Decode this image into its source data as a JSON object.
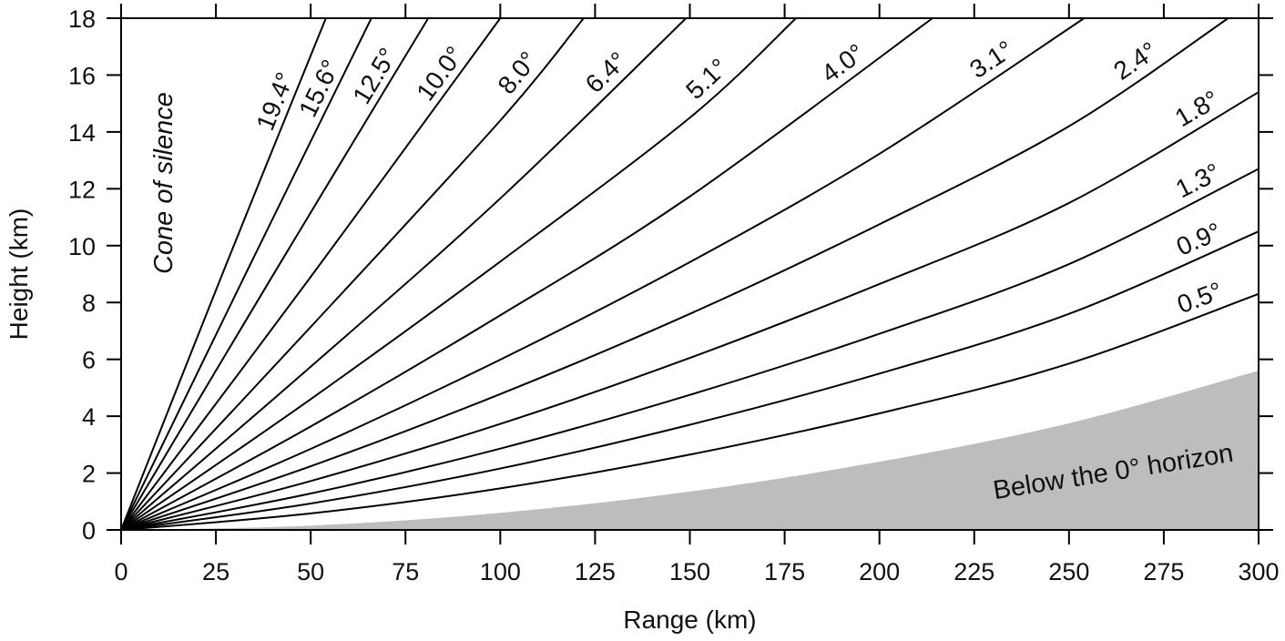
{
  "chart_data": {
    "type": "line",
    "title": "",
    "xlabel": "Range (km)",
    "ylabel": "Height (km)",
    "xlim": [
      0,
      300
    ],
    "ylim": [
      0,
      18
    ],
    "x_ticks": [
      0,
      25,
      50,
      75,
      100,
      125,
      150,
      175,
      200,
      225,
      250,
      275,
      300
    ],
    "y_ticks": [
      0,
      2,
      4,
      6,
      8,
      10,
      12,
      14,
      16,
      18
    ],
    "grid": false,
    "series": [
      {
        "name": "0.5°",
        "x": [
          0,
          50,
          100,
          150,
          200,
          250,
          300
        ],
        "y": [
          0,
          0.58,
          1.46,
          2.65,
          4.1,
          5.85,
          8.3
        ]
      },
      {
        "name": "0.9°",
        "x": [
          0,
          50,
          100,
          150,
          200,
          250,
          300
        ],
        "y": [
          0,
          0.93,
          2.16,
          3.7,
          5.5,
          7.6,
          10.5
        ]
      },
      {
        "name": "1.3°",
        "x": [
          0,
          50,
          100,
          150,
          200,
          250,
          300
        ],
        "y": [
          0,
          1.28,
          2.86,
          4.75,
          6.9,
          9.35,
          12.7
        ]
      },
      {
        "name": "1.8°",
        "x": [
          0,
          50,
          100,
          150,
          200,
          250,
          300
        ],
        "y": [
          0,
          1.72,
          3.73,
          6.05,
          8.65,
          11.5,
          15.4
        ]
      },
      {
        "name": "2.4°",
        "x": [
          0,
          50,
          100,
          150,
          200,
          250,
          292
        ],
        "y": [
          0,
          2.24,
          4.78,
          7.6,
          10.75,
          14.2,
          18.0
        ]
      },
      {
        "name": "3.1°",
        "x": [
          0,
          50,
          100,
          150,
          200,
          254
        ],
        "y": [
          0,
          2.85,
          5.99,
          9.42,
          13.23,
          18.0
        ]
      },
      {
        "name": "4.0°",
        "x": [
          0,
          50,
          100,
          150,
          214
        ],
        "y": [
          0,
          3.64,
          7.55,
          11.73,
          18.0
        ]
      },
      {
        "name": "5.1°",
        "x": [
          0,
          50,
          100,
          150,
          178
        ],
        "y": [
          0,
          4.6,
          9.44,
          14.5,
          18.0
        ]
      },
      {
        "name": "6.4°",
        "x": [
          0,
          50,
          100,
          149
        ],
        "y": [
          0,
          5.74,
          11.66,
          18.0
        ]
      },
      {
        "name": "8.0°",
        "x": [
          0,
          50,
          100,
          122
        ],
        "y": [
          0,
          7.14,
          14.4,
          18.0
        ]
      },
      {
        "name": "10.0°",
        "x": [
          0,
          50,
          100
        ],
        "y": [
          0,
          8.9,
          18.0
        ]
      },
      {
        "name": "12.5°",
        "x": [
          0,
          40,
          81
        ],
        "y": [
          0,
          8.95,
          18.0
        ]
      },
      {
        "name": "15.6°",
        "x": [
          0,
          33,
          66
        ],
        "y": [
          0,
          9.05,
          18.0
        ]
      },
      {
        "name": "19.4°",
        "x": [
          0,
          27,
          54
        ],
        "y": [
          0,
          9.1,
          18.0
        ]
      }
    ],
    "shaded_region": {
      "label": "Below the 0° horizon",
      "color": "#bdbdbd",
      "x": [
        0,
        50,
        100,
        150,
        200,
        250,
        300
      ],
      "y": [
        0,
        0.15,
        0.6,
        1.35,
        2.4,
        3.75,
        5.6
      ]
    },
    "annotations": [
      {
        "text": "Cone of silence",
        "style": "italic"
      }
    ],
    "colors": {
      "line": "#000000",
      "shade": "#bdbdbd",
      "text": "#111111"
    }
  }
}
